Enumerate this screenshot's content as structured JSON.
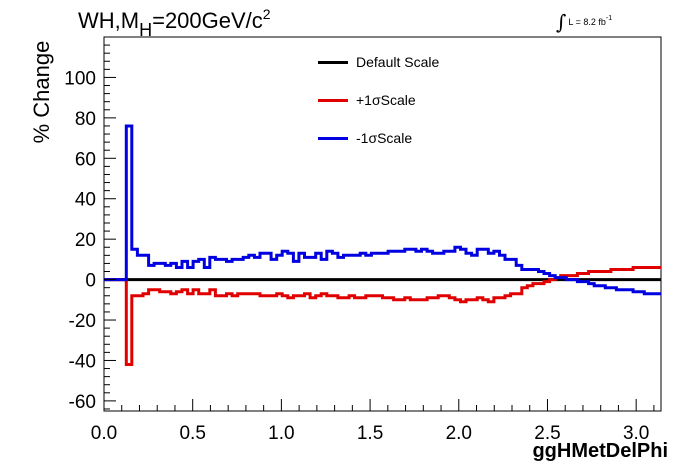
{
  "title": {
    "main": "WH,M",
    "sub": "H",
    "rest": "=200GeV/c",
    "sup": "2"
  },
  "lumi": {
    "text": "L = 8.2 fb",
    "sup": "-1"
  },
  "colors": {
    "default": "#000000",
    "plus": "#e00000",
    "minus": "#0000e0",
    "axis": "#000000"
  },
  "chart_data": {
    "type": "line",
    "title": "WH,MH=200GeV/c 2",
    "xlabel": "ggHMetDelPhi",
    "ylabel": "% Change",
    "xlim": [
      0,
      3.14
    ],
    "ylim": [
      -65,
      120
    ],
    "x_ticks": [
      "0.0",
      "0.5",
      "1.0",
      "1.5",
      "2.0",
      "2.5",
      "3.0"
    ],
    "x_tick_values": [
      0,
      0.5,
      1.0,
      1.5,
      2.0,
      2.5,
      3.0
    ],
    "y_ticks": [
      "-60",
      "-40",
      "-20",
      "0",
      "20",
      "40",
      "60",
      "80",
      "100"
    ],
    "y_tick_values": [
      -60,
      -40,
      -20,
      0,
      20,
      40,
      60,
      80,
      100
    ],
    "bin_width": 0.0314,
    "series": [
      {
        "name": "Default Scale",
        "color": "#000000",
        "values": [
          0,
          0,
          0,
          0,
          0,
          0,
          0,
          0,
          0,
          0,
          0,
          0,
          0,
          0,
          0,
          0,
          0,
          0,
          0,
          0,
          0,
          0,
          0,
          0,
          0,
          0,
          0,
          0,
          0,
          0,
          0,
          0,
          0,
          0,
          0,
          0,
          0,
          0,
          0,
          0,
          0,
          0,
          0,
          0,
          0,
          0,
          0,
          0,
          0,
          0,
          0,
          0,
          0,
          0,
          0,
          0,
          0,
          0,
          0,
          0,
          0,
          0,
          0,
          0,
          0,
          0,
          0,
          0,
          0,
          0,
          0,
          0,
          0,
          0,
          0,
          0,
          0,
          0,
          0,
          0,
          0,
          0,
          0,
          0,
          0,
          0,
          0,
          0,
          0,
          0,
          0,
          0,
          0,
          0,
          0,
          0,
          0,
          0,
          0,
          0
        ]
      },
      {
        "name": "+1σScale",
        "color": "#e00000",
        "values": [
          0,
          0,
          0,
          0,
          -42,
          -8,
          -8,
          -7,
          -5,
          -5,
          -6,
          -6,
          -7,
          -6,
          -5,
          -7,
          -5,
          -7,
          -7,
          -5,
          -8,
          -8,
          -7,
          -8,
          -7,
          -7,
          -7,
          -7,
          -8,
          -8,
          -8,
          -7,
          -8,
          -9,
          -8,
          -8,
          -7,
          -9,
          -8,
          -7,
          -8,
          -8,
          -9,
          -9,
          -8,
          -9,
          -9,
          -8,
          -8,
          -8,
          -9,
          -9,
          -10,
          -10,
          -9,
          -10,
          -10,
          -10,
          -9,
          -9,
          -8,
          -8,
          -9,
          -10,
          -11,
          -10,
          -10,
          -9,
          -10,
          -11,
          -9,
          -9,
          -8,
          -7,
          -7,
          -4,
          -3,
          -2,
          -2,
          -1,
          0,
          1,
          2,
          2,
          2,
          3,
          3,
          4,
          4,
          4,
          4,
          5,
          5,
          5,
          5,
          6,
          6,
          6,
          6,
          6
        ]
      },
      {
        "name": "-1σScale",
        "color": "#0000e0",
        "values": [
          0,
          0,
          0,
          0,
          76,
          15,
          12,
          12,
          7,
          8,
          8,
          7,
          8,
          6,
          9,
          6,
          9,
          10,
          6,
          11,
          10,
          10,
          9,
          10,
          10,
          11,
          12,
          11,
          13,
          13,
          10,
          12,
          14,
          13,
          9,
          13,
          11,
          11,
          13,
          10,
          14,
          13,
          11,
          12,
          12,
          12,
          13,
          12,
          13,
          13,
          13,
          14,
          14,
          14,
          15,
          15,
          14,
          15,
          14,
          13,
          13,
          14,
          14,
          16,
          15,
          13,
          12,
          15,
          15,
          13,
          14,
          12,
          10,
          10,
          7,
          5,
          5,
          5,
          4,
          3,
          2,
          1,
          1,
          0,
          0,
          -1,
          -1,
          -2,
          -3,
          -3,
          -4,
          -4,
          -5,
          -5,
          -5,
          -6,
          -6,
          -7,
          -7,
          -7
        ]
      }
    ]
  }
}
